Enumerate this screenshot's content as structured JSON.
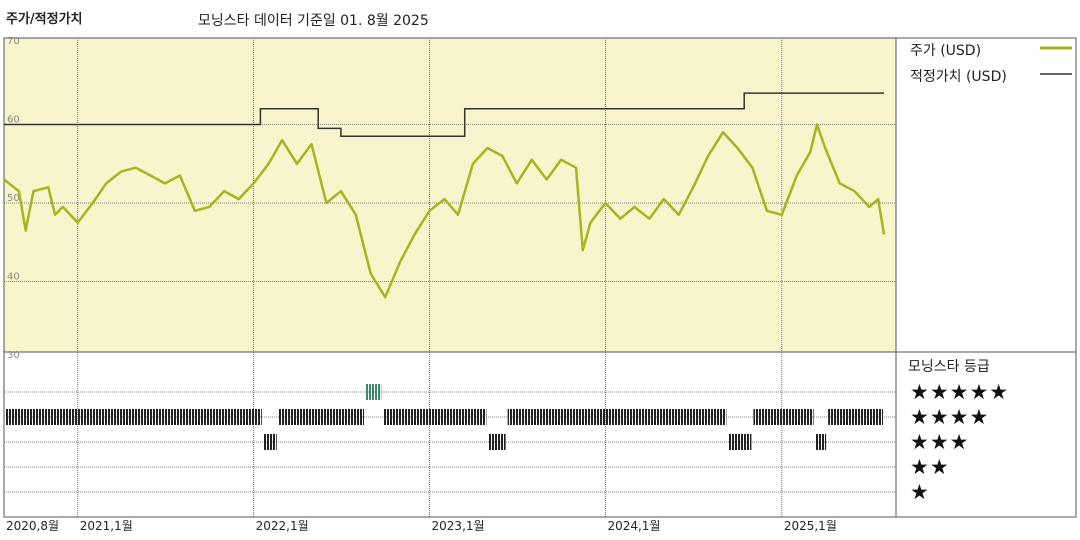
{
  "header": {
    "title": "주가/적정가치",
    "subtitle": "모닝스타 데이터 기준일 01. 8월 2025"
  },
  "legend": {
    "price": "주가 (USD)",
    "fair_value": "적정가치 (USD)"
  },
  "rating_panel": {
    "title": "모닝스타 등급",
    "stars": [
      "★★★★★",
      "★★★★",
      "★★★",
      "★★",
      "★"
    ]
  },
  "colors": {
    "price_line": "#a8b41e",
    "fair_value_line": "#333333",
    "price_panel_bg": "#f8f4cc",
    "rating_bar": "#222222",
    "rating_5star": "#3f8a6a"
  },
  "chart_data": {
    "type": "line",
    "title": "주가/적정가치",
    "x_range": [
      "2020-08-01",
      "2025-08-01"
    ],
    "x_ticks": [
      {
        "date": "2020-08-01",
        "label": "2020,8월"
      },
      {
        "date": "2021-01-01",
        "label": "2021,1월"
      },
      {
        "date": "2022-01-01",
        "label": "2022,1월"
      },
      {
        "date": "2023-01-01",
        "label": "2023,1월"
      },
      {
        "date": "2024-01-01",
        "label": "2024,1월"
      },
      {
        "date": "2025-01-01",
        "label": "2025,1월"
      }
    ],
    "y_range": [
      30,
      70
    ],
    "y_ticks": [
      30,
      40,
      50,
      60,
      70
    ],
    "series": [
      {
        "name": "주가 (USD)",
        "points": [
          [
            "2020-08-01",
            53.0
          ],
          [
            "2020-09-01",
            51.5
          ],
          [
            "2020-09-15",
            46.5
          ],
          [
            "2020-10-01",
            51.5
          ],
          [
            "2020-11-01",
            52.0
          ],
          [
            "2020-11-15",
            48.5
          ],
          [
            "2020-12-01",
            49.5
          ],
          [
            "2021-01-01",
            47.5
          ],
          [
            "2021-02-01",
            50.0
          ],
          [
            "2021-03-01",
            52.5
          ],
          [
            "2021-04-01",
            54.0
          ],
          [
            "2021-05-01",
            54.5
          ],
          [
            "2021-06-01",
            53.5
          ],
          [
            "2021-07-01",
            52.5
          ],
          [
            "2021-08-01",
            53.5
          ],
          [
            "2021-09-01",
            49.0
          ],
          [
            "2021-10-01",
            49.5
          ],
          [
            "2021-11-01",
            51.5
          ],
          [
            "2021-12-01",
            50.5
          ],
          [
            "2022-01-01",
            52.5
          ],
          [
            "2022-02-01",
            55.0
          ],
          [
            "2022-03-01",
            58.0
          ],
          [
            "2022-04-01",
            55.0
          ],
          [
            "2022-05-01",
            57.5
          ],
          [
            "2022-06-01",
            50.0
          ],
          [
            "2022-07-01",
            51.5
          ],
          [
            "2022-08-01",
            48.5
          ],
          [
            "2022-09-01",
            41.0
          ],
          [
            "2022-10-01",
            38.0
          ],
          [
            "2022-11-01",
            42.5
          ],
          [
            "2022-12-01",
            46.0
          ],
          [
            "2023-01-01",
            49.0
          ],
          [
            "2023-02-01",
            50.5
          ],
          [
            "2023-03-01",
            48.5
          ],
          [
            "2023-04-01",
            55.0
          ],
          [
            "2023-05-01",
            57.0
          ],
          [
            "2023-06-01",
            56.0
          ],
          [
            "2023-07-01",
            52.5
          ],
          [
            "2023-08-01",
            55.5
          ],
          [
            "2023-09-01",
            53.0
          ],
          [
            "2023-10-01",
            55.5
          ],
          [
            "2023-11-01",
            54.5
          ],
          [
            "2023-11-15",
            44.0
          ],
          [
            "2023-12-01",
            47.5
          ],
          [
            "2024-01-01",
            50.0
          ],
          [
            "2024-02-01",
            48.0
          ],
          [
            "2024-03-01",
            49.5
          ],
          [
            "2024-04-01",
            48.0
          ],
          [
            "2024-05-01",
            50.5
          ],
          [
            "2024-06-01",
            48.5
          ],
          [
            "2024-07-01",
            52.0
          ],
          [
            "2024-08-01",
            56.0
          ],
          [
            "2024-09-01",
            59.0
          ],
          [
            "2024-10-01",
            57.0
          ],
          [
            "2024-11-01",
            54.5
          ],
          [
            "2024-12-01",
            49.0
          ],
          [
            "2025-01-01",
            48.5
          ],
          [
            "2025-02-01",
            53.5
          ],
          [
            "2025-03-01",
            56.5
          ],
          [
            "2025-03-15",
            60.0
          ],
          [
            "2025-04-01",
            57.0
          ],
          [
            "2025-05-01",
            52.5
          ],
          [
            "2025-06-01",
            51.5
          ],
          [
            "2025-07-01",
            49.5
          ],
          [
            "2025-07-20",
            50.5
          ],
          [
            "2025-08-01",
            46.0
          ]
        ]
      },
      {
        "name": "적정가치 (USD)",
        "points": [
          [
            "2020-08-01",
            60.0
          ],
          [
            "2022-01-15",
            60.0
          ],
          [
            "2022-01-15",
            62.0
          ],
          [
            "2022-05-15",
            62.0
          ],
          [
            "2022-05-15",
            59.5
          ],
          [
            "2022-07-01",
            59.5
          ],
          [
            "2022-07-01",
            58.5
          ],
          [
            "2023-03-15",
            58.5
          ],
          [
            "2023-03-15",
            62.0
          ],
          [
            "2024-10-15",
            62.0
          ],
          [
            "2024-10-15",
            64.0
          ],
          [
            "2025-08-01",
            64.0
          ]
        ]
      }
    ],
    "rating": {
      "label": "모닝스타 등급",
      "segments": [
        {
          "stars": 4,
          "start": "2020-08-01",
          "end": "2022-01-20"
        },
        {
          "stars": 3,
          "start": "2022-01-20",
          "end": "2022-02-20"
        },
        {
          "stars": 4,
          "start": "2022-02-20",
          "end": "2022-08-20"
        },
        {
          "stars": 5,
          "start": "2022-08-20",
          "end": "2022-09-25"
        },
        {
          "stars": 4,
          "start": "2022-09-25",
          "end": "2023-05-01"
        },
        {
          "stars": 3,
          "start": "2023-05-01",
          "end": "2023-06-10"
        },
        {
          "stars": 4,
          "start": "2023-06-10",
          "end": "2024-09-10"
        },
        {
          "stars": 3,
          "start": "2024-09-10",
          "end": "2024-11-01"
        },
        {
          "stars": 4,
          "start": "2024-11-01",
          "end": "2025-03-10"
        },
        {
          "stars": 3,
          "start": "2025-03-10",
          "end": "2025-04-05"
        },
        {
          "stars": 4,
          "start": "2025-04-05",
          "end": "2025-08-01"
        }
      ]
    }
  }
}
